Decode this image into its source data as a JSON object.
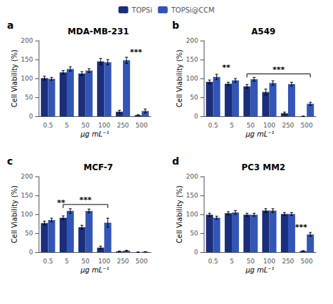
{
  "chart_data": [
    {
      "type": "bar",
      "label": "a",
      "title": "MDA-MB-231",
      "categories": [
        "0.5",
        "5",
        "50",
        "100",
        "250",
        "500"
      ],
      "series": [
        {
          "name": "TOPSi",
          "color": "#1a2e7a",
          "values": [
            101,
            116,
            113,
            145,
            12,
            3
          ],
          "errors": [
            5,
            5,
            5,
            8,
            4,
            1
          ]
        },
        {
          "name": "TOPSi@CCM",
          "color": "#3355b5",
          "values": [
            99,
            125,
            121,
            143,
            148,
            14
          ],
          "errors": [
            4,
            6,
            5,
            7,
            8,
            5
          ]
        }
      ],
      "annotations": [
        {
          "text": "***",
          "x": 4.7,
          "y": 160
        }
      ],
      "xlabel": "μg mL⁻¹",
      "ylabel": "Cell Viability (%)",
      "ylim": [
        0,
        200
      ],
      "yticks": [
        0,
        50,
        100,
        150,
        200
      ],
      "grid": false,
      "legend": "top"
    },
    {
      "type": "bar",
      "label": "b",
      "title": "A549",
      "categories": [
        "0.5",
        "5",
        "50",
        "100",
        "250",
        "500"
      ],
      "series": [
        {
          "name": "TOPSi",
          "color": "#1a2e7a",
          "values": [
            91,
            86,
            79,
            64,
            8,
            0
          ],
          "errors": [
            5,
            4,
            5,
            8,
            3,
            0.5
          ]
        },
        {
          "name": "TOPSi@CCM",
          "color": "#3355b5",
          "values": [
            104,
            95,
            98,
            88,
            85,
            33
          ],
          "errors": [
            7,
            5,
            5,
            6,
            5,
            4
          ]
        }
      ],
      "annotations": [
        {
          "text": "**",
          "x": 0.7,
          "y": 118
        },
        {
          "text": "***",
          "y": 112,
          "bracket": [
            "50",
            "500"
          ]
        }
      ],
      "xlabel": "μg mL⁻¹",
      "ylabel": "Cell Viability (%)",
      "ylim": [
        0,
        200
      ],
      "yticks": [
        0,
        50,
        100,
        150,
        200
      ],
      "grid": false,
      "legend": "top"
    },
    {
      "type": "bar",
      "label": "c",
      "title": "MCF-7",
      "categories": [
        "0.5",
        "5",
        "50",
        "100",
        "250",
        "500"
      ],
      "series": [
        {
          "name": "TOPSi",
          "color": "#1a2e7a",
          "values": [
            77,
            91,
            66,
            12,
            2,
            0
          ],
          "errors": [
            5,
            5,
            5,
            4,
            1,
            0.5
          ]
        },
        {
          "name": "TOPSi@CCM",
          "color": "#3355b5",
          "values": [
            85,
            109,
            109,
            78,
            4,
            1
          ],
          "errors": [
            5,
            6,
            5,
            12,
            1,
            0.5
          ]
        }
      ],
      "annotations": [
        {
          "text": "**",
          "x": 0.7,
          "y": 120
        },
        {
          "text": "***",
          "y": 126,
          "bracket": [
            "5",
            "100"
          ]
        }
      ],
      "xlabel": "μg mL⁻¹",
      "ylabel": "Cell Viability (%)",
      "ylim": [
        0,
        200
      ],
      "yticks": [
        0,
        50,
        100,
        150,
        200
      ],
      "grid": false,
      "legend": "top"
    },
    {
      "type": "bar",
      "label": "d",
      "title": "PC3 MM2",
      "categories": [
        "0.5",
        "5",
        "50",
        "100",
        "250",
        "500"
      ],
      "series": [
        {
          "name": "TOPSi",
          "color": "#1a2e7a",
          "values": [
            99,
            103,
            99,
            110,
            101,
            3
          ],
          "errors": [
            4,
            4,
            4,
            5,
            4,
            1
          ]
        },
        {
          "name": "TOPSi@CCM",
          "color": "#3355b5",
          "values": [
            91,
            105,
            99,
            110,
            101,
            47
          ],
          "errors": [
            4,
            5,
            4,
            5,
            4,
            5
          ]
        }
      ],
      "annotations": [
        {
          "text": "***",
          "x": 4.7,
          "y": 55
        }
      ],
      "xlabel": "μg mL⁻¹",
      "ylabel": "Cell Viability (%)",
      "ylim": [
        0,
        200
      ],
      "yticks": [
        0,
        50,
        100,
        150,
        200
      ],
      "grid": false,
      "legend": "top"
    }
  ]
}
